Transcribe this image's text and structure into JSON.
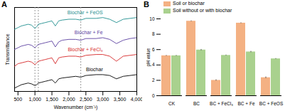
{
  "chart_data": [
    {
      "type": "line",
      "label": "A",
      "x_label": "Wavenumber (cm⁻¹)",
      "y_label": "Transmittance",
      "x": [
        400,
        500,
        600,
        700,
        800,
        900,
        1000,
        1050,
        1100,
        1200,
        1300,
        1400,
        1500,
        1600,
        1700,
        1800,
        2000,
        2200,
        2350,
        2500,
        2800,
        3000,
        3200,
        3400,
        3600,
        3800,
        4000
      ],
      "series": [
        {
          "name": "Biochar",
          "color": "#000000",
          "values": [
            4,
            6,
            8,
            9,
            10,
            9,
            7,
            8,
            10,
            11,
            12,
            13,
            14,
            10,
            15,
            16,
            17,
            18,
            17,
            19,
            20,
            20,
            19,
            15,
            18,
            19,
            20
          ]
        },
        {
          "name": "Biochar + FeCl₃",
          "color": "#d62728",
          "values": [
            30,
            33,
            34,
            35,
            36,
            35,
            32,
            34,
            36,
            37,
            38,
            39,
            40,
            33,
            40,
            41,
            42,
            42,
            41,
            43,
            44,
            44,
            42,
            36,
            42,
            43,
            44
          ]
        },
        {
          "name": "Biochar + Fe",
          "color": "#5b3fa0",
          "values": [
            50,
            52,
            54,
            55,
            56,
            55,
            52,
            54,
            56,
            57,
            58,
            59,
            60,
            53,
            59,
            61,
            62,
            62,
            61,
            63,
            63,
            64,
            62,
            57,
            61,
            63,
            64
          ]
        },
        {
          "name": "Biochar + FeOS",
          "color": "#1f8f8f",
          "values": [
            74,
            76,
            78,
            79,
            80,
            79,
            75,
            77,
            80,
            81,
            82,
            83,
            84,
            78,
            84,
            85,
            86,
            86,
            85,
            87,
            87,
            88,
            86,
            82,
            86,
            87,
            88
          ]
        }
      ],
      "vlines": [
        1000,
        1100,
        2350
      ],
      "xlim": [
        400,
        4000
      ],
      "xticks": [
        500,
        1000,
        1500,
        2000,
        2500,
        3000,
        3500,
        4000
      ],
      "ylim": [
        0,
        100
      ],
      "tick_labels": "x",
      "line_style": "solid"
    },
    {
      "type": "bar",
      "label": "B",
      "y_label": "pH value",
      "categories": [
        "CK",
        "BC",
        "BC + FeCl₃",
        "BC + Fe",
        "BC + FeOS"
      ],
      "series": [
        {
          "name": "Soil or biochar",
          "color": "#f4b183",
          "values": [
            5.2,
            9.7,
            2.0,
            9.45,
            2.35
          ],
          "errors": [
            0.05,
            0.05,
            0.08,
            0.05,
            0.1
          ]
        },
        {
          "name": "Soil without or with biochar",
          "color": "#a9d18e",
          "values": [
            5.2,
            5.95,
            5.25,
            5.7,
            4.8
          ],
          "errors": [
            0.05,
            0.08,
            0.05,
            0.08,
            0.05
          ]
        }
      ],
      "ylim": [
        0,
        10
      ],
      "yticks": [
        0,
        2,
        4,
        6,
        8,
        10
      ],
      "legend": "top-right"
    }
  ]
}
